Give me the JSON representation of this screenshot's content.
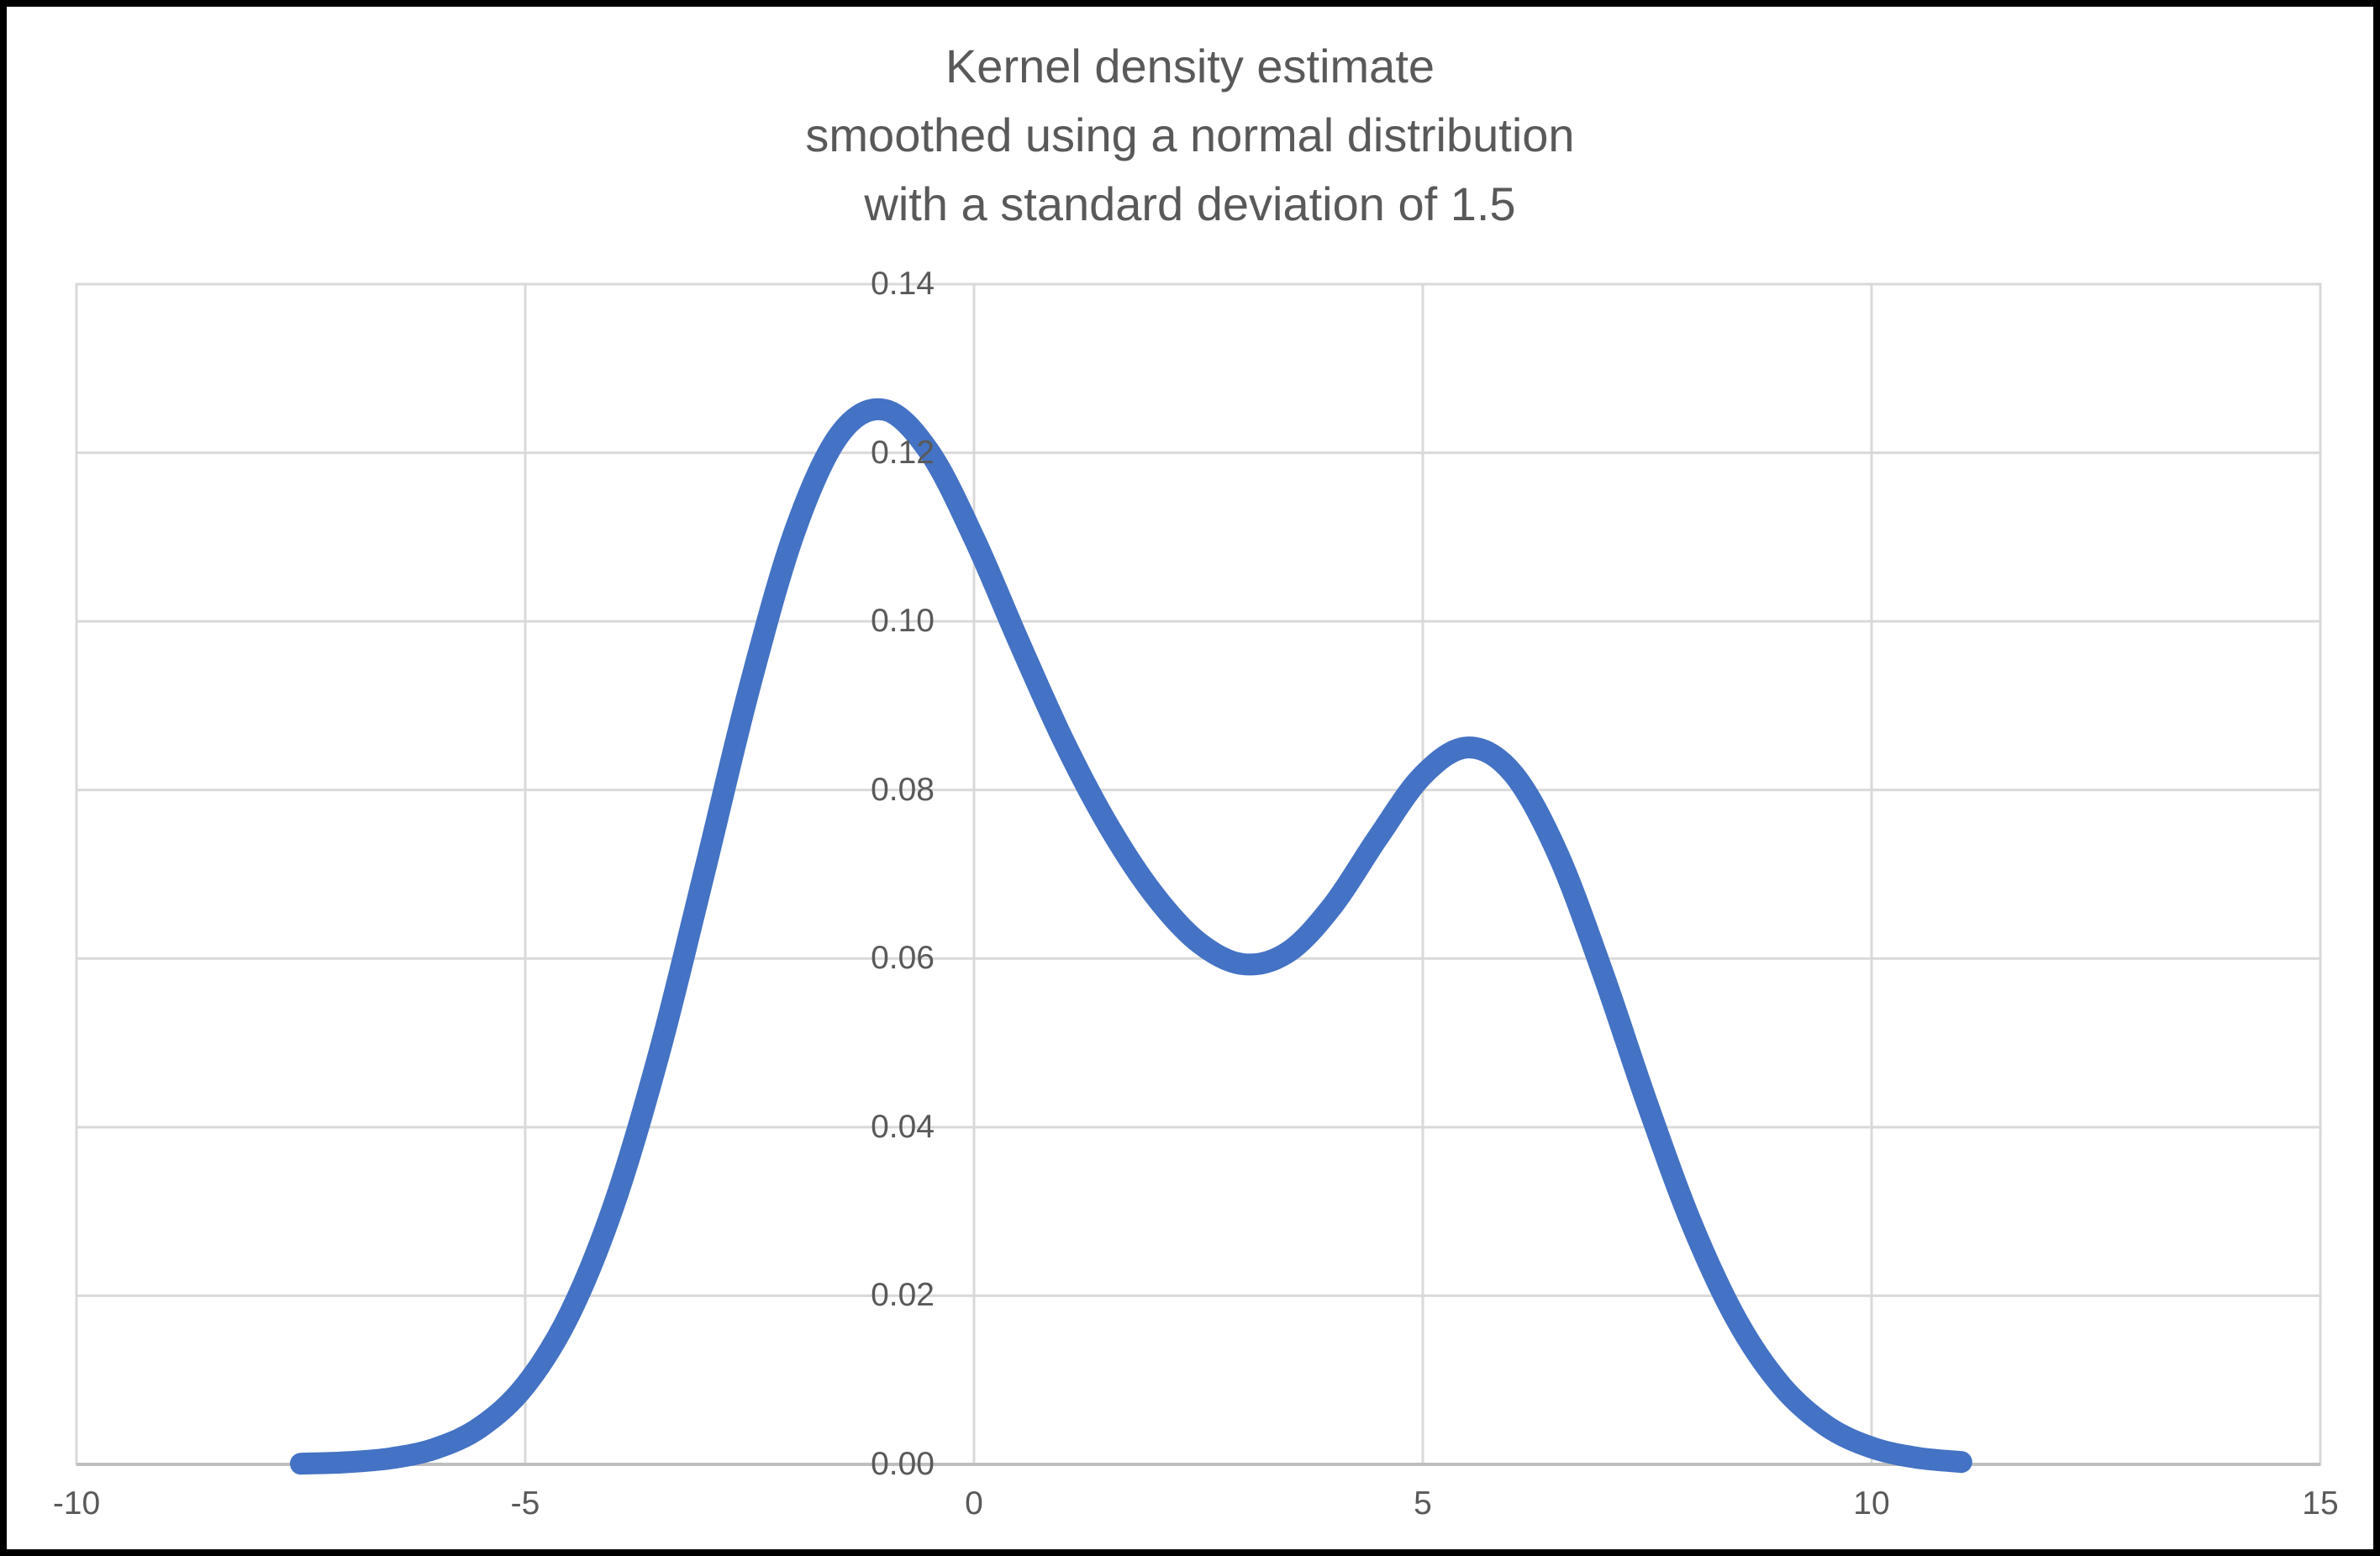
{
  "frame": {
    "background": "#FFFFFF",
    "border_color": "#000000"
  },
  "chart_data": {
    "type": "line",
    "title": "Kernel density estimate smoothed using a normal distribution with a standard deviation of 1.5",
    "title_lines": [
      "Kernel density estimate",
      "smoothed using a normal distribution",
      "with a standard deviation of 1.5"
    ],
    "xlabel": "",
    "ylabel": "",
    "xlim": [
      -10,
      15
    ],
    "ylim": [
      0,
      0.14
    ],
    "x_ticks": [
      -10,
      -5,
      0,
      5,
      10,
      15
    ],
    "x_tick_labels": [
      "-10",
      "-5",
      "0",
      "5",
      "10",
      "15"
    ],
    "y_ticks": [
      0,
      0.02,
      0.04,
      0.06,
      0.08,
      0.1,
      0.12,
      0.14
    ],
    "y_tick_labels": [
      "0.00",
      "0.02",
      "0.04",
      "0.06",
      "0.08",
      "0.10",
      "0.12",
      "0.14"
    ],
    "grid": true,
    "legend": false,
    "colors": {
      "line": "#4472C4",
      "gridline": "#D9D9D9",
      "axis_line": "#BFBFBF",
      "text": "#595959"
    },
    "line_stroke_width": 26,
    "series": [
      {
        "color": "#4472C4",
        "x": [
          -7.5,
          -7,
          -6.5,
          -6,
          -5.5,
          -5,
          -4.5,
          -4,
          -3.5,
          -3,
          -2.5,
          -2,
          -1.5,
          -1,
          -0.5,
          0,
          0.5,
          1,
          1.5,
          2,
          2.5,
          3,
          3.5,
          4,
          4.5,
          5,
          5.5,
          6,
          6.5,
          7,
          7.5,
          8,
          8.5,
          9,
          9.5,
          10,
          10.5,
          11
        ],
        "y": [
          8e-05,
          0.00025,
          0.00072,
          0.00188,
          0.00442,
          0.00935,
          0.01795,
          0.03115,
          0.0491,
          0.07043,
          0.0922,
          0.11059,
          0.12213,
          0.12509,
          0.12015,
          0.10988,
          0.09758,
          0.08579,
          0.07572,
          0.06767,
          0.06193,
          0.05933,
          0.06078,
          0.06633,
          0.07435,
          0.08173,
          0.08504,
          0.08202,
          0.07253,
          0.05846,
          0.04282,
          0.02843,
          0.01708,
          0.00928,
          0.00454,
          0.002,
          0.0008,
          0.00028
        ]
      }
    ],
    "features": {
      "peak_1": {
        "x": -1,
        "y": 0.125
      },
      "valley": {
        "x": 3,
        "y": 0.059
      },
      "peak_2": {
        "x": 5.5,
        "y": 0.085
      }
    }
  }
}
